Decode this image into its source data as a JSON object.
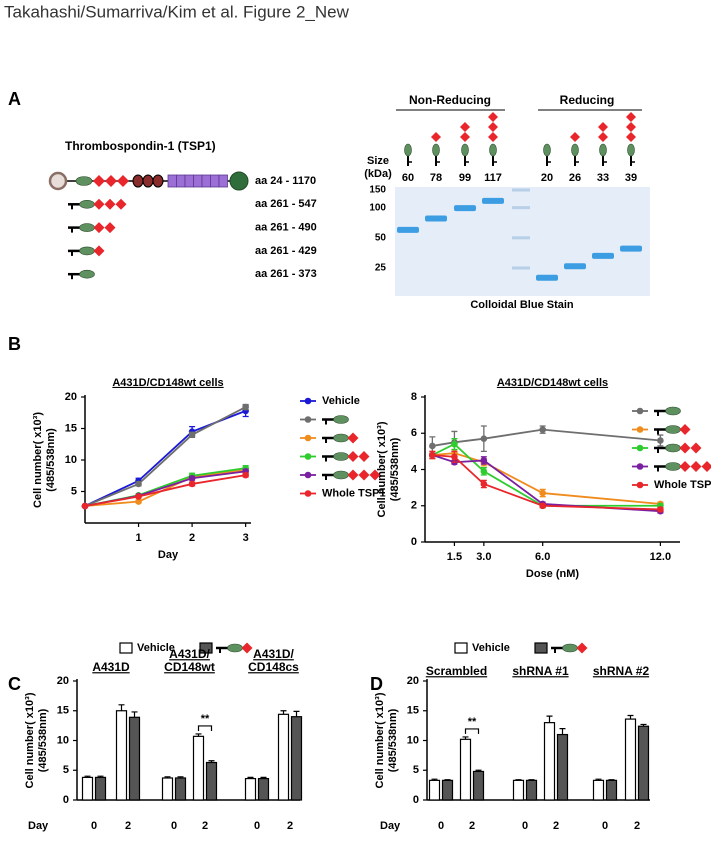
{
  "header": {
    "title": "Takahashi/Sumarriva/Kim et al. Figure 2_New"
  },
  "panel_a": {
    "label": "A",
    "protein": "Thrombospondin-1 (TSP1)",
    "constructs": [
      "aa 24 - 1170",
      "aa 261 - 547",
      "aa 261 - 490",
      "aa 261 - 429",
      "aa 261 - 373"
    ],
    "gel": {
      "groups": [
        "Non-Reducing",
        "Reducing"
      ],
      "size_label": [
        "Size",
        "(kDa)"
      ],
      "sizes": [
        60,
        78,
        99,
        117,
        20,
        26,
        33,
        39
      ],
      "markers": [
        150,
        100,
        50,
        25
      ],
      "caption": "Colloidal Blue Stain"
    }
  },
  "chart_data": [
    {
      "type": "line",
      "panel": "B",
      "title": "A431D/CD148wt cells",
      "xlabel": "Day",
      "ylabel": [
        "Cell number( x10³)",
        "(485/538nm)"
      ],
      "x": [
        0,
        1,
        2,
        3
      ],
      "xlim": [
        0,
        3.1
      ],
      "xticks": [
        1,
        2,
        3
      ],
      "ylim": [
        0,
        20
      ],
      "yticks": [
        5,
        10,
        15,
        20
      ],
      "series": [
        {
          "name": "Vehicle",
          "color": "#1a1ad6",
          "values": [
            2.7,
            6.7,
            14.5,
            17.8
          ],
          "errors": [
            0.2,
            0.4,
            0.8,
            0.9
          ]
        },
        {
          "color": "#6e6e6e",
          "values": [
            2.7,
            6.2,
            14.0,
            18.4
          ],
          "errors": [
            0.2,
            0.3,
            0.4,
            0.4
          ]
        },
        {
          "color": "#f08c1e",
          "values": [
            2.7,
            3.4,
            7.3,
            8.4
          ],
          "errors": [
            0.1,
            0.2,
            0.3,
            0.3
          ]
        },
        {
          "color": "#2ecc2e",
          "values": [
            2.7,
            4.4,
            7.5,
            8.7
          ],
          "errors": [
            0.1,
            0.2,
            0.4,
            0.4
          ]
        },
        {
          "color": "#7a1fa0",
          "values": [
            2.7,
            4.3,
            7.1,
            8.2
          ],
          "errors": [
            0.1,
            0.2,
            0.3,
            0.3
          ]
        },
        {
          "name": "Whole TSP1",
          "color": "#e8262b",
          "values": [
            2.7,
            4.2,
            6.2,
            7.6
          ],
          "errors": [
            0.1,
            0.2,
            0.3,
            0.3
          ]
        }
      ]
    },
    {
      "type": "line",
      "title": "A431D/CD148wt cells",
      "xlabel": "Dose (nM)",
      "ylabel": [
        "Cell number( x10³)",
        "(485/538nm)"
      ],
      "x": [
        0.375,
        1.5,
        3,
        6,
        12
      ],
      "xlim": [
        0,
        13
      ],
      "xticks": [
        1.5,
        {
          "value": 3,
          "label": "3.0"
        },
        {
          "value": 6,
          "label": "6.0"
        },
        {
          "value": 12,
          "label": "12.0"
        }
      ],
      "ylim": [
        0,
        8
      ],
      "yticks": [
        0,
        2,
        4,
        6,
        8
      ],
      "series": [
        {
          "color": "#6e6e6e",
          "values": [
            5.3,
            5.5,
            5.7,
            6.2,
            5.6
          ],
          "errors": [
            0.5,
            0.6,
            0.7,
            0.2,
            0.3
          ]
        },
        {
          "color": "#f08c1e",
          "values": [
            4.8,
            4.9,
            4.4,
            2.7,
            2.1
          ],
          "errors": [
            0.2,
            0.2,
            0.2,
            0.2,
            0.1
          ]
        },
        {
          "color": "#2ecc2e",
          "values": [
            4.8,
            5.4,
            3.9,
            2.0,
            2.0
          ],
          "errors": [
            0.1,
            0.3,
            0.2,
            0.1,
            0.1
          ]
        },
        {
          "color": "#7a1fa0",
          "values": [
            4.8,
            4.4,
            4.5,
            2.1,
            1.7
          ],
          "errors": [
            0.1,
            0.1,
            0.2,
            0.1,
            0.1
          ]
        },
        {
          "name": "Whole TSP1",
          "color": "#e8262b",
          "values": [
            4.8,
            4.7,
            3.2,
            2.0,
            1.8
          ],
          "errors": [
            0.2,
            0.3,
            0.2,
            0.1,
            0.1
          ]
        }
      ]
    },
    {
      "type": "grouped_bar",
      "panel": "C",
      "xlabel": "Day",
      "ylabel": [
        "Cell number( x10³)",
        "(485/538nm)"
      ],
      "groups": [
        [
          "A431D"
        ],
        [
          "A431D/",
          "CD148wt"
        ],
        [
          "A431D/",
          "CD148cs"
        ]
      ],
      "categories": [
        "0",
        "2",
        "0",
        "2",
        "0",
        "2"
      ],
      "ylim": [
        0,
        20
      ],
      "yticks": [
        0,
        5,
        10,
        15,
        20
      ],
      "annotation": "**",
      "series": [
        {
          "name": "Vehicle",
          "color": "#ffffff",
          "values": [
            3.8,
            15.0,
            3.7,
            10.7,
            3.6,
            14.4
          ],
          "errors": [
            0.2,
            1.0,
            0.2,
            0.4,
            0.2,
            0.6
          ]
        },
        {
          "color": "#555555",
          "values": [
            3.8,
            13.9,
            3.7,
            6.3,
            3.6,
            14.0
          ],
          "errors": [
            0.2,
            0.9,
            0.2,
            0.3,
            0.2,
            0.9
          ]
        }
      ]
    },
    {
      "type": "grouped_bar",
      "panel": "D",
      "xlabel": "Day",
      "ylabel": [
        "Cell number( x10³)",
        "(485/538nm)"
      ],
      "groups": [
        [
          "Scrambled"
        ],
        [
          "shRNA #1"
        ],
        [
          "shRNA #2"
        ]
      ],
      "categories": [
        "0",
        "2",
        "0",
        "2",
        "0",
        "2"
      ],
      "ylim": [
        0,
        20
      ],
      "yticks": [
        0,
        5,
        10,
        15,
        20
      ],
      "annotation": "**",
      "series": [
        {
          "name": "Vehicle",
          "color": "#ffffff",
          "values": [
            3.3,
            10.2,
            3.3,
            13.0,
            3.3,
            13.6
          ],
          "errors": [
            0.2,
            0.4,
            0.1,
            1.1,
            0.2,
            0.6
          ]
        },
        {
          "color": "#555555",
          "values": [
            3.3,
            4.8,
            3.3,
            11.0,
            3.3,
            12.4
          ],
          "errors": [
            0.1,
            0.2,
            0.1,
            1.0,
            0.1,
            0.3
          ]
        }
      ]
    }
  ]
}
